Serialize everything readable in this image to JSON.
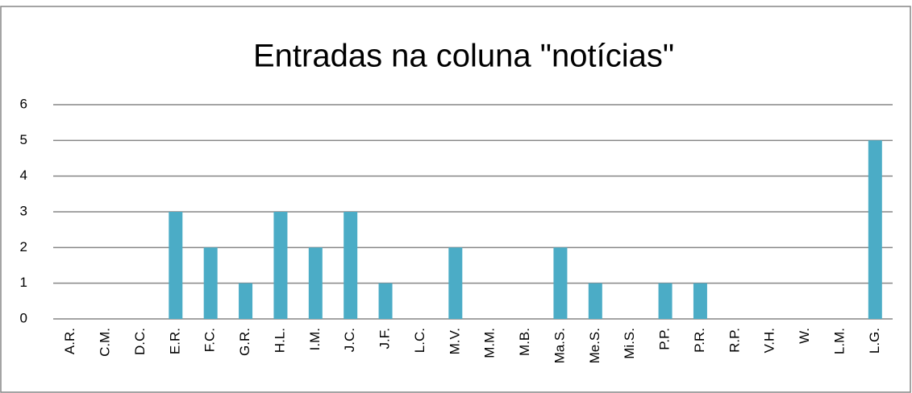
{
  "chart_data": {
    "type": "bar",
    "title": "Entradas na coluna \"notícias\"",
    "categories": [
      "A.R.",
      "C.M.",
      "D.C.",
      "E.R.",
      "F.C.",
      "G.R.",
      "H.L.",
      "I.M.",
      "J.C.",
      "J.F.",
      "L.C.",
      "M.V.",
      "M.M.",
      "M.B.",
      "Ma.S.",
      "Me.S.",
      "Mi.S.",
      "P.P.",
      "P.R.",
      "R.P.",
      "V.H.",
      "W.",
      "L.M.",
      "L.G."
    ],
    "values": [
      0,
      0,
      0,
      3,
      2,
      1,
      3,
      2,
      3,
      1,
      0,
      2,
      0,
      0,
      2,
      1,
      0,
      1,
      1,
      0,
      0,
      0,
      0,
      5
    ],
    "color": "#4bacc6",
    "ylim": [
      0,
      6
    ],
    "yticks": [
      0,
      1,
      2,
      3,
      4,
      5,
      6
    ],
    "grid": true
  }
}
